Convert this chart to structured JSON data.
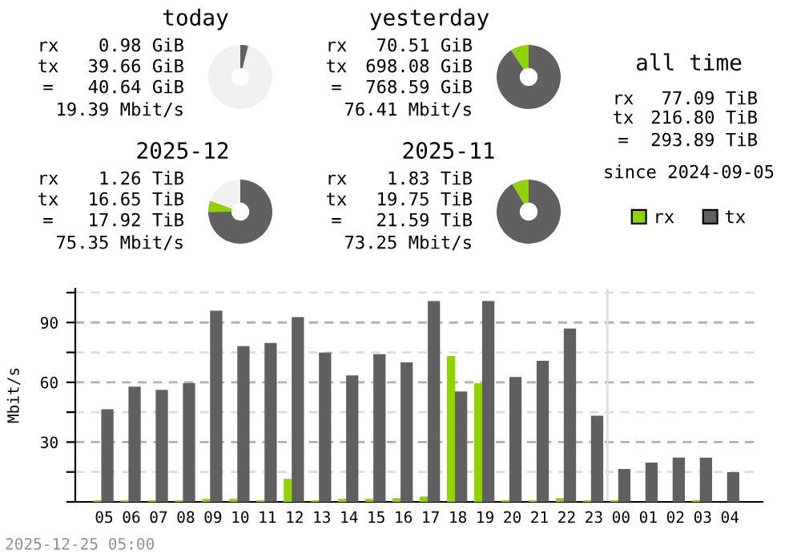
{
  "chart_data": [
    {
      "type": "donut",
      "title": "today",
      "categories": [
        null,
        null,
        null
      ],
      "values": [
        4,
        0.1,
        95.9
      ],
      "colors": [
        "#606060",
        "#8fd400",
        "#f0f0f0"
      ],
      "annotations": [
        "rx",
        "0.98 GiB",
        "tx",
        "39.66 GiB",
        "=",
        "40.64 GiB",
        "19.39 Mbit/s"
      ]
    },
    {
      "type": "donut",
      "title": "yesterday",
      "categories": [
        null,
        null
      ],
      "values": [
        90.8,
        9.2
      ],
      "colors": [
        "#606060",
        "#8fd400"
      ],
      "annotations": [
        "rx",
        "70.51 GiB",
        "tx",
        "698.08 GiB",
        "=",
        "768.59 GiB",
        "76.41 Mbit/s"
      ]
    },
    {
      "type": "donut",
      "title": "2025-12",
      "categories": [
        null,
        null,
        null
      ],
      "values": [
        74.9,
        5.7,
        19.4
      ],
      "colors": [
        "#606060",
        "#8fd400",
        "#f0f0f0"
      ],
      "annotations": [
        "rx",
        "1.26 TiB",
        "tx",
        "16.65 TiB",
        "=",
        "17.92 TiB",
        "75.35 Mbit/s"
      ]
    },
    {
      "type": "donut",
      "title": "2025-11",
      "categories": [
        null,
        null
      ],
      "values": [
        91.5,
        8.5
      ],
      "colors": [
        "#606060",
        "#8fd400"
      ],
      "annotations": [
        "rx",
        "1.83 TiB",
        "tx",
        "19.75 TiB",
        "=",
        "21.59 TiB",
        "73.25 Mbit/s"
      ]
    },
    {
      "type": "other",
      "title": "all time",
      "annotations": [
        "rx",
        "77.09 TiB",
        "tx",
        "216.80 TiB",
        "=",
        "293.89 TiB",
        "since 2024-09-05"
      ]
    },
    {
      "type": "bar",
      "ylabel": "Mbit/s",
      "categories": [
        "05",
        "06",
        "07",
        "08",
        "09",
        "10",
        "11",
        "12",
        "13",
        "14",
        "15",
        "16",
        "17",
        "18",
        "19",
        "20",
        "21",
        "22",
        "23",
        "00",
        "01",
        "02",
        "03",
        "04"
      ],
      "series": [
        {
          "name": "rx",
          "color": "#8fd400",
          "values": [
            0.8,
            0.8,
            0.8,
            0.8,
            1.5,
            1.5,
            0.8,
            11.6,
            0.8,
            1.5,
            1.5,
            1.9,
            2.7,
            73.2,
            59.5,
            0.8,
            0.8,
            1.9,
            0.8,
            0.8,
            0,
            0,
            0.8,
            0
          ]
        },
        {
          "name": "tx",
          "color": "#606060",
          "values": [
            46.5,
            57.8,
            56.2,
            59.5,
            95.9,
            78.1,
            79.7,
            92.7,
            74.9,
            63.5,
            74.1,
            70.0,
            100.8,
            55.4,
            100.8,
            62.7,
            70.8,
            87.0,
            43.2,
            16.5,
            19.7,
            22.2,
            22.2,
            14.9
          ]
        }
      ],
      "ylim": [
        0,
        107
      ],
      "yticks": [
        {
          "value": 0,
          "label": null
        },
        {
          "value": 15,
          "label": null
        },
        30,
        {
          "value": 45,
          "label": null
        },
        60,
        {
          "value": 75,
          "label": null
        },
        90,
        {
          "value": 105,
          "label": null
        }
      ],
      "grid": "y",
      "legend": "top right",
      "ref_lines": [
        {
          "axis": "x",
          "value": "00",
          "color": "#e0e0e0"
        }
      ],
      "annotations": [
        "2025-12-25 05:00"
      ]
    }
  ]
}
